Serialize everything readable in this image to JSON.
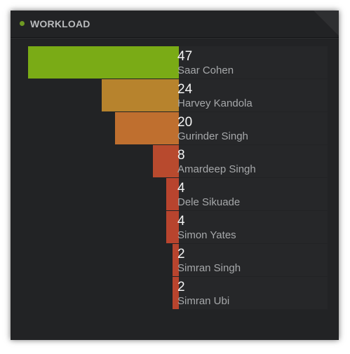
{
  "widget": {
    "title": "WORKLOAD",
    "status_color": "#6f9a23"
  },
  "chart_data": {
    "type": "bar",
    "orientation": "horizontal",
    "align": "right",
    "categories": [
      "Saar Cohen",
      "Harvey Kandola",
      "Gurinder Singh",
      "Amardeep Singh",
      "Dele Sikuade",
      "Simon Yates",
      "Simran Singh",
      "Simran Ubi"
    ],
    "values": [
      47,
      24,
      20,
      8,
      4,
      4,
      2,
      2
    ],
    "value_labels": [
      "47",
      "24",
      "20",
      "8",
      "4",
      "4",
      "2",
      "2"
    ],
    "bar_colors": [
      "#7aab16",
      "#b7832d",
      "#bf6f2f",
      "#b84a2e",
      "#b8442e",
      "#b8442e",
      "#b8442e",
      "#b8442e"
    ],
    "xlim": [
      0,
      47
    ]
  }
}
